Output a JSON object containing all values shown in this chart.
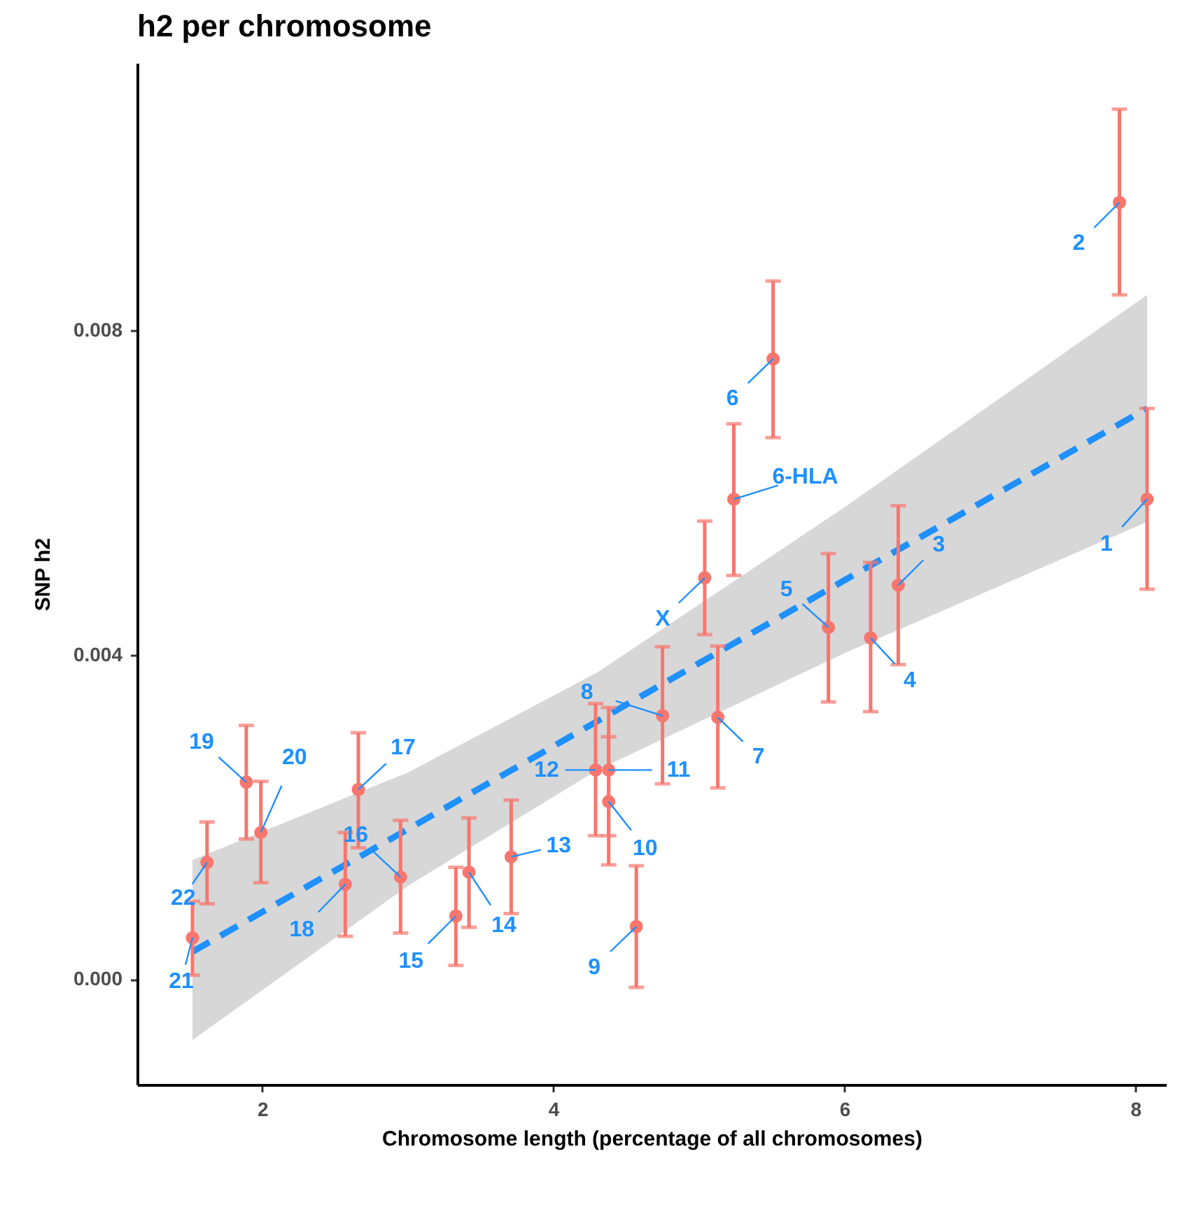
{
  "chart_data": {
    "type": "scatter",
    "title": "h2 per chromosome",
    "xlabel": "Chromosome length (percentage of all chromosomes)",
    "ylabel": "SNP h2",
    "xlim": [
      1.14,
      8.21
    ],
    "ylim": [
      -0.0013,
      0.0113
    ],
    "xticks": [
      2,
      4,
      6,
      8
    ],
    "yticks": [
      {
        "value": 0,
        "label": "0.000"
      },
      0.004,
      0.008
    ],
    "series": [
      {
        "color": "#f8766d",
        "marker": "circle",
        "x": [
          1.52,
          1.62,
          1.89,
          1.99,
          2.66,
          2.57,
          2.95,
          3.33,
          3.42,
          3.71,
          4.29,
          4.38,
          4.38,
          4.57,
          4.75,
          5.13,
          5.04,
          5.24,
          5.51,
          5.89,
          6.18,
          6.37,
          7.89,
          8.08
        ],
        "values": [
          0.00051,
          0.00144,
          0.00243,
          0.00181,
          0.00234,
          0.00117,
          0.00126,
          0.00078,
          0.00132,
          0.00151,
          0.00258,
          0.00258,
          0.00219,
          0.00065,
          0.00325,
          0.00323,
          0.00495,
          0.00592,
          0.00765,
          0.00434,
          0.00421,
          0.00486,
          0.00958,
          0.00592
        ],
        "errors": [
          [
            5e-05,
            0.00096
          ],
          [
            0.00093,
            0.00194
          ],
          [
            0.00173,
            0.00313
          ],
          [
            0.00119,
            0.00244
          ],
          [
            0.00162,
            0.00304
          ],
          [
            0.00053,
            0.00181
          ],
          [
            0.00057,
            0.00196
          ],
          [
            0.00017,
            0.00138
          ],
          [
            0.00064,
            0.00199
          ],
          [
            0.00081,
            0.00221
          ],
          [
            0.00177,
            0.0034
          ],
          [
            0.00177,
            0.00335
          ],
          [
            0.00141,
            0.00299
          ],
          [
            -0.0001,
            0.0014
          ],
          [
            0.00241,
            0.0041
          ],
          [
            0.00236,
            0.00411
          ],
          [
            0.00425,
            0.00565
          ],
          [
            0.00498,
            0.00685
          ],
          [
            0.00668,
            0.00861
          ],
          [
            0.00342,
            0.00525
          ],
          [
            0.0033,
            0.00514
          ],
          [
            0.00388,
            0.00584
          ],
          [
            0.00844,
            0.01073
          ],
          [
            0.00481,
            0.00704
          ]
        ]
      },
      {
        "type": "line",
        "color": "#1e90ff",
        "line_style": "dashed",
        "x": [
          1.52,
          3,
          4.3,
          6,
          8.08
        ],
        "values": [
          0.00034,
          0.00185,
          0.00318,
          0.00492,
          0.00704
        ],
        "lower": [
          -0.00075,
          0.00115,
          0.00258,
          0.00402,
          0.00564
        ],
        "upper": [
          0.00147,
          0.00255,
          0.00378,
          0.00582,
          0.00844
        ]
      }
    ],
    "annotations": [
      {
        "text": "21",
        "x": 1.52,
        "y": 0.00051
      },
      {
        "text": "22",
        "x": 1.62,
        "y": 0.00144
      },
      {
        "text": "19",
        "x": 1.89,
        "y": 0.00243
      },
      {
        "text": "20",
        "x": 1.99,
        "y": 0.00181
      },
      {
        "text": "17",
        "x": 2.66,
        "y": 0.00234
      },
      {
        "text": "18",
        "x": 2.57,
        "y": 0.00117
      },
      {
        "text": "16",
        "x": 2.95,
        "y": 0.00126
      },
      {
        "text": "15",
        "x": 3.33,
        "y": 0.00078
      },
      {
        "text": "14",
        "x": 3.42,
        "y": 0.00132
      },
      {
        "text": "13",
        "x": 3.71,
        "y": 0.00151
      },
      {
        "text": "12",
        "x": 4.29,
        "y": 0.00258
      },
      {
        "text": "11",
        "x": 4.38,
        "y": 0.00258
      },
      {
        "text": "10",
        "x": 4.38,
        "y": 0.00219
      },
      {
        "text": "9",
        "x": 4.57,
        "y": 0.00065
      },
      {
        "text": "8",
        "x": 4.75,
        "y": 0.00325
      },
      {
        "text": "7",
        "x": 5.13,
        "y": 0.00323
      },
      {
        "text": "X",
        "x": 5.04,
        "y": 0.00495
      },
      {
        "text": "6-HLA",
        "x": 5.24,
        "y": 0.00592
      },
      {
        "text": "6",
        "x": 5.51,
        "y": 0.00765
      },
      {
        "text": "5",
        "x": 5.89,
        "y": 0.00434
      },
      {
        "text": "4",
        "x": 6.18,
        "y": 0.00421
      },
      {
        "text": "3",
        "x": 6.37,
        "y": 0.00486
      },
      {
        "text": "2",
        "x": 7.89,
        "y": 0.00958
      },
      {
        "text": "1",
        "x": 8.08,
        "y": 0.00592
      }
    ]
  }
}
